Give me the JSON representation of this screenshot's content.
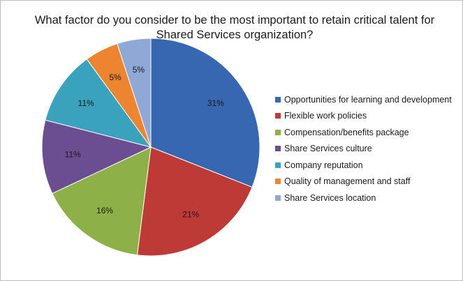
{
  "chart_data": {
    "type": "pie",
    "title_lines": [
      "What factor do you consider to be the most important to retain critical talent for",
      "Shared Services organization?"
    ],
    "slices": [
      {
        "label": "Opportunities for learning and development",
        "value": 31,
        "value_label": "31%",
        "color": "#3667b0"
      },
      {
        "label": "Flexible work policies",
        "value": 21,
        "value_label": "21%",
        "color": "#be3a36"
      },
      {
        "label": "Compensation/benefits package",
        "value": 16,
        "value_label": "16%",
        "color": "#8db048"
      },
      {
        "label": "Share Services culture",
        "value": 11,
        "value_label": "11%",
        "color": "#6b4d92"
      },
      {
        "label": "Company reputation",
        "value": 11,
        "value_label": "11%",
        "color": "#3aa2bd"
      },
      {
        "label": "Quality of management and staff",
        "value": 5,
        "value_label": "5%",
        "color": "#ec8430"
      },
      {
        "label": "Share Services location",
        "value": 5,
        "value_label": "5%",
        "color": "#8fa8d5"
      }
    ],
    "legend_position": "right"
  }
}
